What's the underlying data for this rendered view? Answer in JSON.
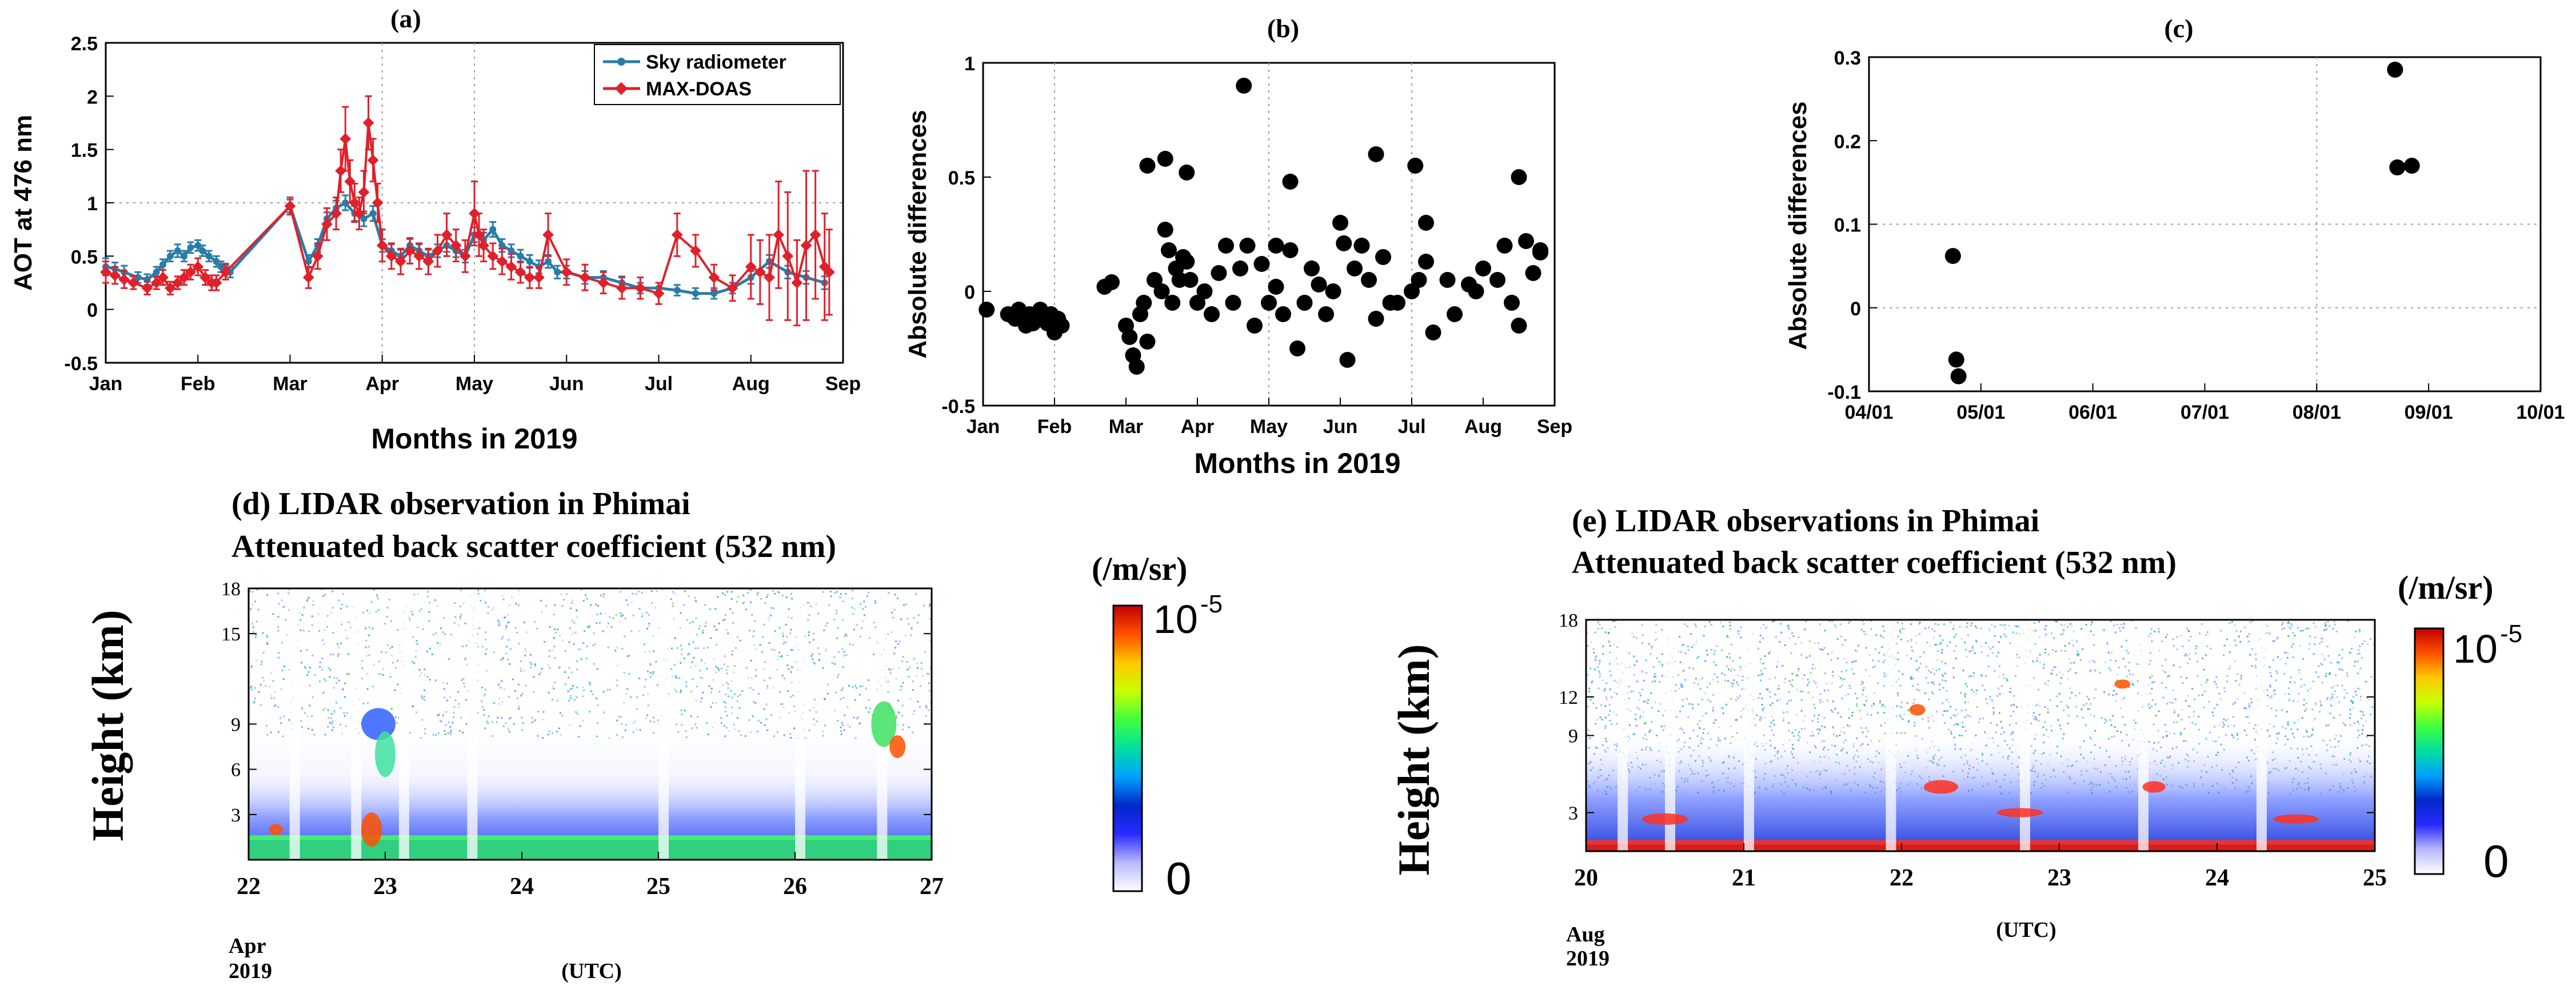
{
  "colors": {
    "sky": "#2a7ca8",
    "maxdoas": "#e0202a",
    "dot": "#000000",
    "grid": "#9a9a9a",
    "colorbar": [
      "#ffffff",
      "#b8b8ff",
      "#2a2aff",
      "#0028c8",
      "#00a0ff",
      "#00e0a0",
      "#40ff40",
      "#c8ff00",
      "#ffc800",
      "#ff5000",
      "#c00000"
    ]
  },
  "chart_data": [
    {
      "id": "a",
      "type": "line",
      "title": "(a)",
      "xlabel": "Months in 2019",
      "ylabel": "AOT at 476 nm",
      "xlim": [
        0,
        8
      ],
      "ylim": [
        -0.5,
        2.5
      ],
      "xtick_labels": [
        "Jan",
        "Feb",
        "Mar",
        "Apr",
        "May",
        "Jun",
        "Jul",
        "Aug",
        "Sep"
      ],
      "ytick_labels": [
        "-0.5",
        "0",
        "0.5",
        "1",
        "1.5",
        "2",
        "2.5"
      ],
      "legend": [
        "Sky radiometer",
        "MAX-DOAS"
      ],
      "legend_position": "top-right",
      "series": [
        {
          "name": "Sky radiometer",
          "x": [
            0.0,
            0.1,
            0.2,
            0.35,
            0.45,
            0.55,
            0.62,
            0.7,
            0.78,
            0.85,
            0.92,
            1.0,
            1.05,
            1.12,
            1.2,
            1.25,
            1.3,
            1.35,
            2.0,
            2.2,
            2.3,
            2.4,
            2.5,
            2.6,
            2.7,
            2.8,
            2.9,
            3.0,
            3.1,
            3.2,
            3.3,
            3.4,
            3.5,
            3.6,
            3.7,
            3.8,
            3.9,
            4.0,
            4.1,
            4.2,
            4.3,
            4.4,
            4.5,
            4.6,
            4.7,
            4.8,
            4.9,
            5.0,
            5.2,
            5.4,
            5.6,
            5.8,
            6.0,
            6.2,
            6.4,
            6.6,
            6.8,
            7.0,
            7.2,
            7.4,
            7.6,
            7.8
          ],
          "y": [
            0.4,
            0.38,
            0.35,
            0.3,
            0.28,
            0.35,
            0.42,
            0.5,
            0.55,
            0.5,
            0.58,
            0.6,
            0.55,
            0.5,
            0.45,
            0.4,
            0.38,
            0.35,
            0.97,
            0.45,
            0.6,
            0.85,
            0.95,
            1.0,
            0.9,
            0.85,
            0.9,
            0.6,
            0.55,
            0.5,
            0.6,
            0.55,
            0.5,
            0.55,
            0.6,
            0.55,
            0.5,
            0.7,
            0.65,
            0.75,
            0.6,
            0.55,
            0.5,
            0.45,
            0.4,
            0.45,
            0.35,
            0.35,
            0.3,
            0.3,
            0.25,
            0.2,
            0.2,
            0.18,
            0.15,
            0.15,
            0.2,
            0.3,
            0.45,
            0.35,
            0.3,
            0.25
          ],
          "err": [
            0.08,
            0.06,
            0.06,
            0.05,
            0.05,
            0.05,
            0.05,
            0.05,
            0.06,
            0.05,
            0.05,
            0.05,
            0.05,
            0.05,
            0.05,
            0.05,
            0.05,
            0.05,
            0.06,
            0.06,
            0.06,
            0.06,
            0.07,
            0.07,
            0.07,
            0.07,
            0.07,
            0.06,
            0.06,
            0.06,
            0.06,
            0.06,
            0.06,
            0.06,
            0.06,
            0.06,
            0.06,
            0.07,
            0.07,
            0.07,
            0.06,
            0.06,
            0.06,
            0.06,
            0.06,
            0.06,
            0.06,
            0.06,
            0.06,
            0.06,
            0.06,
            0.05,
            0.05,
            0.05,
            0.05,
            0.05,
            0.05,
            0.06,
            0.06,
            0.06,
            0.06,
            0.06
          ]
        },
        {
          "name": "MAX-DOAS",
          "x": [
            0.0,
            0.1,
            0.2,
            0.3,
            0.45,
            0.55,
            0.62,
            0.7,
            0.78,
            0.85,
            0.92,
            1.0,
            1.08,
            1.15,
            1.2,
            1.3,
            2.0,
            2.2,
            2.3,
            2.4,
            2.5,
            2.55,
            2.6,
            2.65,
            2.7,
            2.75,
            2.8,
            2.85,
            2.9,
            2.95,
            3.0,
            3.1,
            3.2,
            3.3,
            3.4,
            3.5,
            3.6,
            3.7,
            3.8,
            3.9,
            4.0,
            4.05,
            4.1,
            4.2,
            4.3,
            4.4,
            4.5,
            4.6,
            4.7,
            4.8,
            5.0,
            5.2,
            5.4,
            5.6,
            5.8,
            6.0,
            6.2,
            6.4,
            6.6,
            6.8,
            7.0,
            7.1,
            7.2,
            7.3,
            7.4,
            7.5,
            7.6,
            7.7,
            7.8,
            7.85
          ],
          "y": [
            0.35,
            0.32,
            0.28,
            0.25,
            0.2,
            0.25,
            0.3,
            0.2,
            0.25,
            0.3,
            0.35,
            0.4,
            0.3,
            0.25,
            0.25,
            0.35,
            0.97,
            0.3,
            0.5,
            0.8,
            0.9,
            1.3,
            1.6,
            1.2,
            1.0,
            0.9,
            1.1,
            1.75,
            1.4,
            1.0,
            0.6,
            0.5,
            0.45,
            0.55,
            0.5,
            0.45,
            0.55,
            0.7,
            0.6,
            0.5,
            0.9,
            0.7,
            0.6,
            0.5,
            0.45,
            0.4,
            0.35,
            0.3,
            0.3,
            0.7,
            0.35,
            0.3,
            0.25,
            0.2,
            0.2,
            0.15,
            0.7,
            0.55,
            0.3,
            0.2,
            0.4,
            0.35,
            0.3,
            0.7,
            0.5,
            0.25,
            0.6,
            0.7,
            0.4,
            0.35
          ],
          "err": [
            0.1,
            0.08,
            0.08,
            0.06,
            0.06,
            0.06,
            0.07,
            0.06,
            0.06,
            0.07,
            0.07,
            0.08,
            0.07,
            0.07,
            0.07,
            0.07,
            0.08,
            0.1,
            0.12,
            0.15,
            0.15,
            0.2,
            0.3,
            0.2,
            0.18,
            0.15,
            0.2,
            0.25,
            0.2,
            0.18,
            0.15,
            0.12,
            0.12,
            0.12,
            0.12,
            0.12,
            0.15,
            0.2,
            0.15,
            0.15,
            0.3,
            0.2,
            0.15,
            0.12,
            0.12,
            0.12,
            0.1,
            0.1,
            0.1,
            0.2,
            0.12,
            0.12,
            0.1,
            0.1,
            0.1,
            0.1,
            0.2,
            0.15,
            0.12,
            0.12,
            0.3,
            0.3,
            0.4,
            0.5,
            0.6,
            0.4,
            0.7,
            0.6,
            0.5,
            0.4
          ]
        }
      ]
    },
    {
      "id": "b",
      "type": "scatter",
      "title": "(b)",
      "xlabel": "Months in 2019",
      "ylabel": "Absolute differences",
      "xlim": [
        0,
        8
      ],
      "ylim": [
        -0.5,
        1.0
      ],
      "xtick_labels": [
        "Jan",
        "Feb",
        "Mar",
        "Apr",
        "May",
        "Jun",
        "Jul",
        "Aug",
        "Sep"
      ],
      "ytick_labels": [
        "-0.5",
        "0",
        "0.5",
        "1"
      ],
      "x": [
        0.05,
        0.35,
        0.45,
        0.5,
        0.6,
        0.65,
        0.75,
        0.8,
        0.9,
        0.95,
        1.0,
        1.05,
        0.7,
        1.1,
        1.7,
        1.8,
        2.0,
        2.05,
        2.1,
        2.15,
        2.2,
        2.3,
        2.25,
        2.4,
        2.5,
        2.55,
        2.6,
        2.65,
        2.7,
        2.75,
        2.8,
        2.85,
        2.9,
        3.0,
        3.1,
        3.2,
        3.3,
        3.4,
        3.5,
        3.6,
        3.7,
        3.8,
        3.9,
        4.0,
        4.1,
        4.2,
        4.3,
        4.4,
        4.5,
        4.6,
        4.7,
        4.8,
        4.9,
        5.0,
        5.1,
        5.2,
        5.3,
        5.4,
        5.5,
        5.6,
        5.7,
        5.8,
        6.0,
        6.1,
        6.2,
        6.3,
        6.5,
        6.6,
        6.8,
        6.9,
        7.0,
        7.2,
        7.3,
        7.4,
        7.5,
        7.6,
        7.7,
        7.8,
        2.55,
        2.85,
        3.65,
        4.3,
        5.5,
        2.3,
        4.1,
        5.05,
        6.05,
        6.2,
        7.5,
        7.8
      ],
      "y": [
        -0.08,
        -0.1,
        -0.12,
        -0.08,
        -0.15,
        -0.1,
        -0.12,
        -0.08,
        -0.14,
        -0.1,
        -0.18,
        -0.12,
        -0.14,
        -0.15,
        0.02,
        0.04,
        -0.15,
        -0.2,
        -0.28,
        -0.33,
        -0.1,
        -0.22,
        -0.05,
        0.05,
        0.0,
        0.27,
        0.18,
        -0.05,
        0.1,
        0.05,
        0.15,
        0.13,
        0.05,
        -0.05,
        0.0,
        -0.1,
        0.08,
        0.2,
        -0.05,
        0.1,
        0.2,
        -0.15,
        0.12,
        -0.05,
        0.02,
        -0.1,
        0.18,
        -0.25,
        -0.05,
        0.1,
        0.03,
        -0.1,
        0.0,
        0.3,
        -0.3,
        0.1,
        0.2,
        0.05,
        -0.12,
        0.15,
        -0.05,
        -0.05,
        0.0,
        0.05,
        0.13,
        -0.18,
        0.05,
        -0.1,
        0.03,
        0.0,
        0.1,
        0.05,
        0.2,
        -0.05,
        -0.15,
        0.22,
        0.08,
        0.18,
        0.58,
        0.52,
        0.9,
        0.48,
        0.6,
        0.55,
        0.2,
        0.21,
        0.55,
        0.3,
        0.5,
        0.17
      ]
    },
    {
      "id": "c",
      "type": "scatter",
      "title": "(c)",
      "xlabel": "",
      "ylabel": "Absolute differences",
      "xlim": [
        0,
        6
      ],
      "ylim": [
        -0.1,
        0.3
      ],
      "xtick_labels": [
        "04/01",
        "05/01",
        "06/01",
        "07/01",
        "08/01",
        "09/01",
        "10/01"
      ],
      "ytick_labels": [
        "-0.1",
        "0",
        "0.1",
        "0.2",
        "0.3"
      ],
      "x": [
        0.75,
        0.78,
        0.8,
        4.7,
        4.72,
        4.85
      ],
      "y": [
        0.062,
        -0.062,
        -0.082,
        0.285,
        0.168,
        0.17
      ]
    },
    {
      "id": "d",
      "type": "heatmap",
      "title_line1": "(d) LIDAR observation in Phimai",
      "title_line2": "Attenuated back scatter coefficient (532 nm)",
      "ylabel": "Height (km)",
      "ytick_labels": [
        "3",
        "6",
        "9",
        "15",
        "18"
      ],
      "ytick_values": [
        3,
        6,
        9,
        15,
        18
      ],
      "ylim": [
        0,
        18
      ],
      "xtick_labels": [
        "22",
        "23",
        "24",
        "25",
        "26",
        "27"
      ],
      "xlabel_month": "Apr",
      "xlabel_year": "2019",
      "xlabel_utc": "(UTC)",
      "colorbar_unit": "(/m/sr)",
      "colorbar_max": "10",
      "colorbar_exp": "-5",
      "colorbar_min": "0"
    },
    {
      "id": "e",
      "type": "heatmap",
      "title_line1": "(e) LIDAR observations in Phimai",
      "title_line2": "Attenuated back scatter coefficient (532 nm)",
      "ylabel": "Height (km)",
      "ytick_labels": [
        "3",
        "9",
        "12",
        "18"
      ],
      "ytick_values": [
        3,
        9,
        12,
        18
      ],
      "ylim": [
        0,
        18
      ],
      "xtick_labels": [
        "20",
        "21",
        "22",
        "23",
        "24",
        "25"
      ],
      "xlabel_month": "Aug",
      "xlabel_year": "2019",
      "xlabel_utc": "(UTC)",
      "colorbar_unit": "(/m/sr)",
      "colorbar_max": "10",
      "colorbar_exp": "-5",
      "colorbar_min": "0"
    }
  ]
}
